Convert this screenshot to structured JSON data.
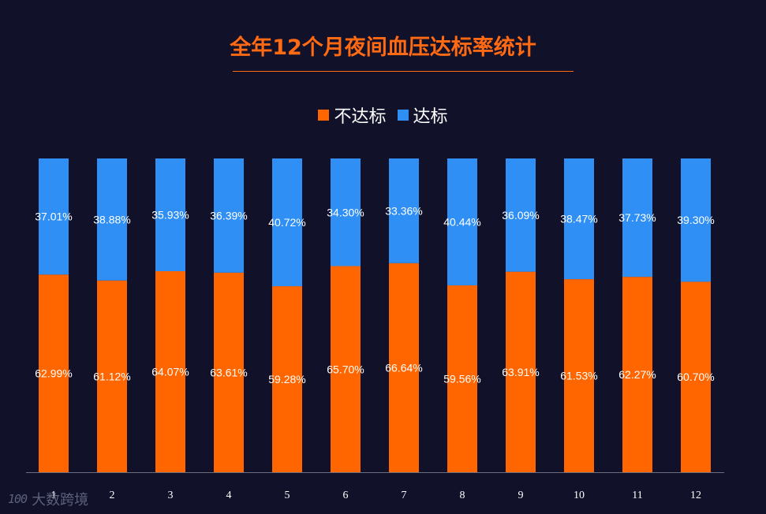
{
  "colors": {
    "background": "#11112a",
    "title": "#ff6a13",
    "not_met": "#ff6600",
    "met": "#2f8ff5",
    "axis": "#6b6f80",
    "tick_text": "#ffffff",
    "label_text": "#ffffff"
  },
  "chart_data": {
    "type": "bar",
    "stacked": true,
    "normalized": true,
    "title": "全年12个月夜间血压达标率统计",
    "xlabel": "",
    "ylabel": "",
    "ylim": [
      0,
      100
    ],
    "grid": false,
    "legend_position": "top-center",
    "categories": [
      "1",
      "2",
      "3",
      "4",
      "5",
      "6",
      "7",
      "8",
      "9",
      "10",
      "11",
      "12"
    ],
    "series": [
      {
        "name": "不达标",
        "values": [
          62.99,
          61.12,
          64.07,
          63.61,
          59.28,
          65.7,
          66.64,
          59.56,
          63.91,
          61.53,
          62.27,
          60.7
        ],
        "labels": [
          "62.99%",
          "61.12%",
          "64.07%",
          "63.61%",
          "59.28%",
          "65.70%",
          "66.64%",
          "59.56%",
          "63.91%",
          "61.53%",
          "62.27%",
          "60.70%"
        ]
      },
      {
        "name": "达标",
        "values": [
          37.01,
          38.88,
          35.93,
          36.39,
          40.72,
          34.3,
          33.36,
          40.44,
          36.09,
          38.47,
          37.73,
          39.3
        ],
        "labels": [
          "37.01%",
          "38.88%",
          "35.93%",
          "36.39%",
          "40.72%",
          "34.30%",
          "33.36%",
          "40.44%",
          "36.09%",
          "38.47%",
          "37.73%",
          "39.30%"
        ]
      }
    ]
  },
  "watermark": {
    "logo_text": "100",
    "text": "大数跨境"
  }
}
